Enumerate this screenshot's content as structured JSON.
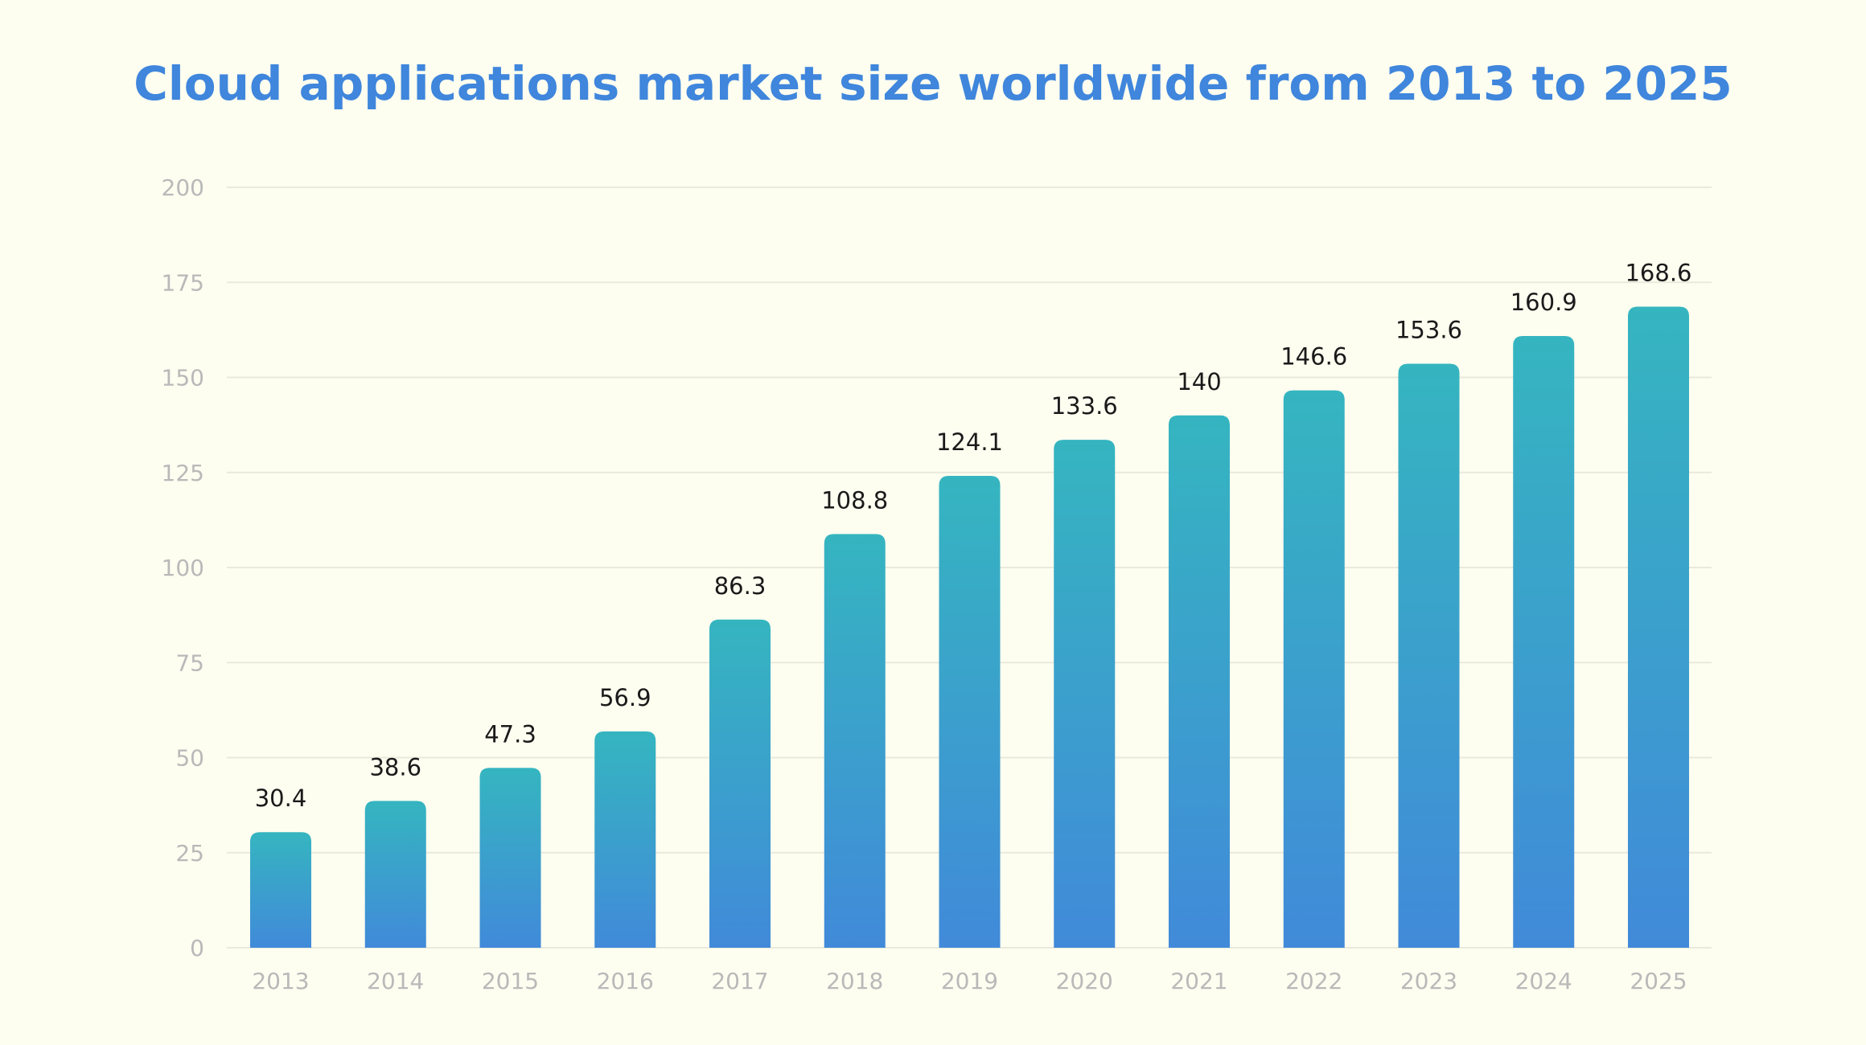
{
  "chart_data": {
    "type": "bar",
    "title": "Cloud applications market size worldwide from 2013 to 2025",
    "xlabel": "",
    "ylabel": "",
    "categories": [
      "2013",
      "2014",
      "2015",
      "2016",
      "2017",
      "2018",
      "2019",
      "2020",
      "2021",
      "2022",
      "2023",
      "2024",
      "2025"
    ],
    "values": [
      30.4,
      38.6,
      47.3,
      56.9,
      86.3,
      108.8,
      124.1,
      133.6,
      140,
      146.6,
      153.6,
      160.9,
      168.6
    ],
    "value_labels": [
      "30.4",
      "38.6",
      "47.3",
      "56.9",
      "86.3",
      "108.8",
      "124.1",
      "133.6",
      "140",
      "146.6",
      "153.6",
      "160.9",
      "168.6"
    ],
    "ylim": [
      0,
      200
    ],
    "yticks": [
      0,
      25,
      50,
      75,
      100,
      125,
      150,
      175,
      200
    ],
    "grid": true,
    "legend": "none",
    "colors": {
      "title": "#3f86dc",
      "bar_top": "#35b5c0",
      "bar_bottom": "#418ad9",
      "tick": "#b9b9b9",
      "label": "#1a1a1a",
      "grid": "#e9e9dc",
      "background": "#fdfdf0"
    }
  }
}
